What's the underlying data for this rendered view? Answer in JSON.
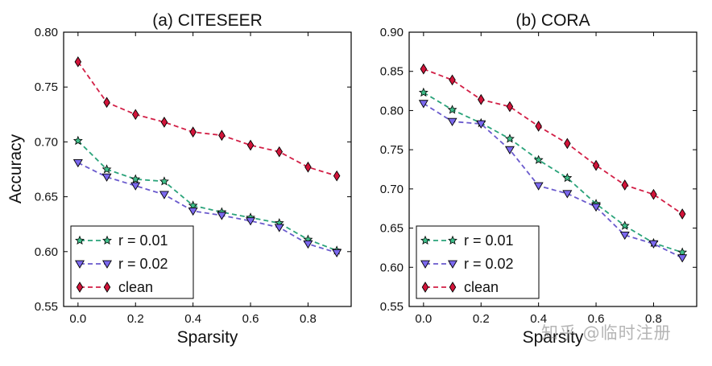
{
  "ylabel": "Accuracy",
  "watermark": "知乎 @临时注册",
  "colors": {
    "r001": "#2aa37a",
    "r002": "#6a5acd",
    "clean": "#d21f46",
    "r001_fill": "#3fbf8a",
    "r002_fill": "#7b68ee",
    "clean_fill": "#d2143a"
  },
  "chart_data": [
    {
      "type": "line",
      "title": "(a) CITESEER",
      "xlabel": "Sparsity",
      "ylabel": "Accuracy",
      "xlim": [
        -0.05,
        0.95
      ],
      "ylim": [
        0.55,
        0.8
      ],
      "xticks": [
        "0.0",
        "0.2",
        "0.4",
        "0.6",
        "0.8"
      ],
      "yticks": [
        "0.55",
        "0.60",
        "0.65",
        "0.70",
        "0.75",
        "0.80"
      ],
      "legend_position": "bottom-left",
      "x": [
        0.0,
        0.1,
        0.2,
        0.3,
        0.4,
        0.5,
        0.6,
        0.7,
        0.8,
        0.9
      ],
      "series": [
        {
          "name": "r = 0.01",
          "marker": "star",
          "color_key": "r001",
          "values": [
            0.701,
            0.675,
            0.666,
            0.664,
            0.642,
            0.636,
            0.631,
            0.626,
            0.611,
            0.601
          ]
        },
        {
          "name": "r = 0.02",
          "marker": "triangle_down",
          "color_key": "r002",
          "values": [
            0.681,
            0.668,
            0.66,
            0.652,
            0.637,
            0.633,
            0.628,
            0.622,
            0.607,
            0.599
          ]
        },
        {
          "name": "clean",
          "marker": "diamond",
          "color_key": "clean",
          "values": [
            0.773,
            0.736,
            0.725,
            0.718,
            0.709,
            0.706,
            0.697,
            0.691,
            0.677,
            0.669
          ]
        }
      ]
    },
    {
      "type": "line",
      "title": "(b) CORA",
      "xlabel": "Sparsity",
      "ylabel": "",
      "xlim": [
        -0.05,
        0.95
      ],
      "ylim": [
        0.55,
        0.9
      ],
      "xticks": [
        "0.0",
        "0.2",
        "0.4",
        "0.6",
        "0.8"
      ],
      "yticks": [
        "0.55",
        "0.60",
        "0.65",
        "0.70",
        "0.75",
        "0.80",
        "0.85",
        "0.90"
      ],
      "legend_position": "bottom-left",
      "x": [
        0.0,
        0.1,
        0.2,
        0.3,
        0.4,
        0.5,
        0.6,
        0.7,
        0.8,
        0.9
      ],
      "series": [
        {
          "name": "r = 0.01",
          "marker": "star",
          "color_key": "r001",
          "values": [
            0.823,
            0.801,
            0.784,
            0.764,
            0.737,
            0.714,
            0.681,
            0.653,
            0.631,
            0.619
          ]
        },
        {
          "name": "r = 0.02",
          "marker": "triangle_down",
          "color_key": "r002",
          "values": [
            0.809,
            0.786,
            0.783,
            0.75,
            0.704,
            0.694,
            0.677,
            0.641,
            0.63,
            0.612
          ]
        },
        {
          "name": "clean",
          "marker": "diamond",
          "color_key": "clean",
          "values": [
            0.853,
            0.839,
            0.814,
            0.805,
            0.78,
            0.758,
            0.73,
            0.705,
            0.693,
            0.668
          ]
        }
      ]
    }
  ]
}
